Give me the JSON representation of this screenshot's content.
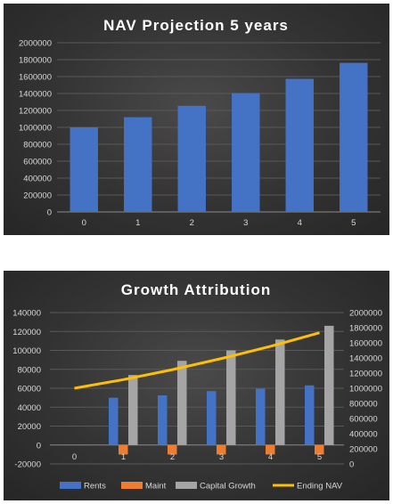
{
  "chart_data": [
    {
      "type": "bar",
      "title": "NAV Projection 5 years",
      "categories": [
        "0",
        "1",
        "2",
        "3",
        "4",
        "5"
      ],
      "values": [
        1000000,
        1120000,
        1254400,
        1404928,
        1573519,
        1762342
      ],
      "ylim": [
        0,
        2000000
      ],
      "yticks": [
        0,
        200000,
        400000,
        600000,
        800000,
        1000000,
        1200000,
        1400000,
        1600000,
        1800000,
        2000000
      ],
      "grid": true,
      "colors": {
        "bar": "#4472c4"
      }
    },
    {
      "type": "bar",
      "title": "Growth Attribution",
      "categories": [
        "0",
        "1",
        "2",
        "3",
        "4",
        "5"
      ],
      "series": [
        {
          "name": "Rents",
          "type": "bar",
          "axis": "left",
          "color": "#4472c4",
          "values": [
            0,
            50000,
            52500,
            57000,
            59500,
            63000
          ]
        },
        {
          "name": "Maint",
          "type": "bar",
          "axis": "left",
          "color": "#ed7d31",
          "values": [
            0,
            -10000,
            -10000,
            -10000,
            -10000,
            -10000
          ]
        },
        {
          "name": "Capital Growth",
          "type": "bar",
          "axis": "left",
          "color": "#a5a5a5",
          "values": [
            0,
            74000,
            89000,
            100000,
            111500,
            126000
          ]
        },
        {
          "name": "Ending NAV",
          "type": "line",
          "axis": "right",
          "color": "#ffc000",
          "values": [
            1000000,
            1114000,
            1245500,
            1392500,
            1553500,
            1732500
          ]
        }
      ],
      "ylim": [
        -20000,
        140000
      ],
      "yticks": [
        -20000,
        0,
        20000,
        40000,
        60000,
        80000,
        100000,
        120000,
        140000
      ],
      "y2lim": [
        0,
        2000000
      ],
      "y2ticks": [
        0,
        200000,
        400000,
        600000,
        800000,
        1000000,
        1200000,
        1400000,
        1600000,
        1800000,
        2000000
      ],
      "grid": true,
      "legend": "bottom"
    }
  ]
}
